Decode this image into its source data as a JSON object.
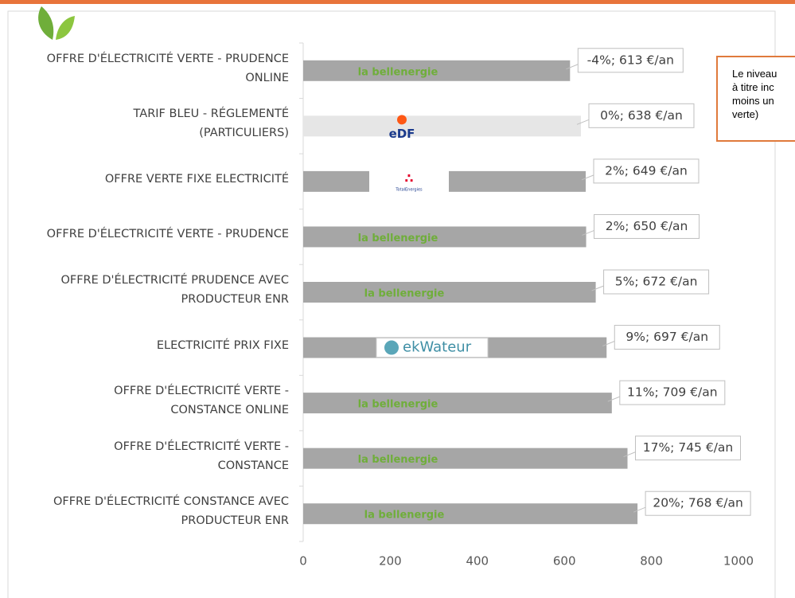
{
  "chart_data": {
    "type": "bar",
    "orientation": "horizontal",
    "categories": [
      "OFFRE D'ÉLECTRICITÉ VERTE - PRUDENCE\nONLINE",
      "TARIF BLEU - RÉGLEMENTÉ\n(PARTICULIERS)",
      "OFFRE VERTE FIXE ELECTRICITÉ",
      "OFFRE D'ÉLECTRICITÉ VERTE - PRUDENCE",
      "OFFRE D'ÉLECTRICITÉ PRUDENCE AVEC\nPRODUCTEUR ENR",
      "ELECTRICITÉ PRIX FIXE",
      "OFFRE D'ÉLECTRICITÉ VERTE -\nCONSTANCE ONLINE",
      "OFFRE D'ÉLECTRICITÉ VERTE -\nCONSTANCE",
      "OFFRE D'ÉLECTRICITÉ CONSTANCE AVEC\nPRODUCTEUR ENR"
    ],
    "values": [
      613,
      638,
      649,
      650,
      672,
      697,
      709,
      745,
      768
    ],
    "value_labels": [
      "-4%; 613 €/an",
      "0%; 638 €/an",
      "2%; 649 €/an",
      "2%; 650 €/an",
      "5%; 672 €/an",
      "9%; 697 €/an",
      "11%; 709 €/an",
      "17%; 745 €/an",
      "20%; 768 €/an"
    ],
    "colors": [
      "#a6a6a6",
      "#e6e6e6",
      "#a6a6a6",
      "#a6a6a6",
      "#a6a6a6",
      "#a6a6a6",
      "#a6a6a6",
      "#a6a6a6",
      "#a6a6a6"
    ],
    "logos": [
      "la bellenergie",
      "eDF",
      "TotalEnergies",
      "la bellenergie",
      "la bellenergie",
      "ekWateur",
      "la bellenergie",
      "la bellenergie",
      "la bellenergie"
    ],
    "xlim": [
      0,
      1000
    ],
    "xticks": [
      0,
      200,
      400,
      600,
      800,
      1000
    ],
    "annotation": [
      "Le niveau",
      "à titre inc",
      "moins un",
      "verte)"
    ]
  }
}
